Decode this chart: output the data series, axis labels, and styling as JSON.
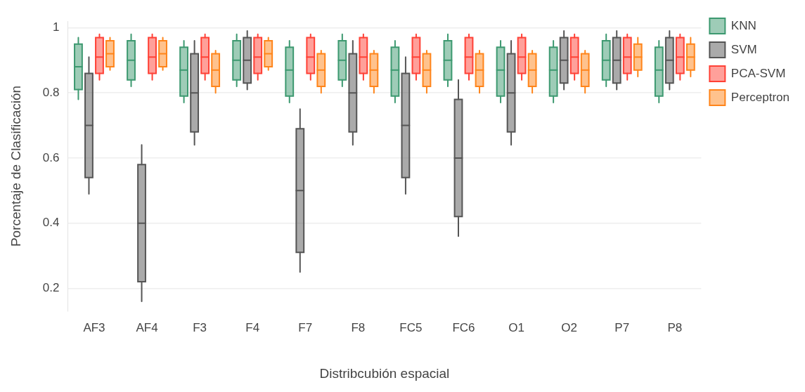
{
  "chart_data": {
    "type": "box",
    "xlabel": "Distribcubión espacial",
    "ylabel": "Porcentaje de Clasificación",
    "categories": [
      "AF3",
      "AF4",
      "F3",
      "F4",
      "F7",
      "F8",
      "FC5",
      "FC6",
      "O1",
      "O2",
      "P7",
      "P8"
    ],
    "ylim": [
      0.13,
      1.02
    ],
    "yticks": [
      0.2,
      0.4,
      0.6,
      0.8,
      1
    ],
    "grid": "y",
    "legend": "top right",
    "series": [
      {
        "name": "KNN",
        "color": "#3d9970",
        "boxes": [
          {
            "low": 0.78,
            "q1": 0.81,
            "median": 0.88,
            "q3": 0.95,
            "high": 0.97
          },
          {
            "low": 0.82,
            "q1": 0.84,
            "median": 0.9,
            "q3": 0.96,
            "high": 0.98
          },
          {
            "low": 0.77,
            "q1": 0.79,
            "median": 0.87,
            "q3": 0.94,
            "high": 0.96
          },
          {
            "low": 0.82,
            "q1": 0.84,
            "median": 0.9,
            "q3": 0.96,
            "high": 0.98
          },
          {
            "low": 0.77,
            "q1": 0.79,
            "median": 0.87,
            "q3": 0.94,
            "high": 0.96
          },
          {
            "low": 0.82,
            "q1": 0.84,
            "median": 0.9,
            "q3": 0.96,
            "high": 0.98
          },
          {
            "low": 0.77,
            "q1": 0.79,
            "median": 0.87,
            "q3": 0.94,
            "high": 0.96
          },
          {
            "low": 0.82,
            "q1": 0.84,
            "median": 0.9,
            "q3": 0.96,
            "high": 0.98
          },
          {
            "low": 0.77,
            "q1": 0.79,
            "median": 0.87,
            "q3": 0.94,
            "high": 0.96
          },
          {
            "low": 0.77,
            "q1": 0.79,
            "median": 0.87,
            "q3": 0.94,
            "high": 0.96
          },
          {
            "low": 0.82,
            "q1": 0.84,
            "median": 0.9,
            "q3": 0.96,
            "high": 0.98
          },
          {
            "low": 0.77,
            "q1": 0.79,
            "median": 0.87,
            "q3": 0.94,
            "high": 0.96
          }
        ]
      },
      {
        "name": "SVM",
        "color": "#555555",
        "boxes": [
          {
            "low": 0.49,
            "q1": 0.54,
            "median": 0.7,
            "q3": 0.86,
            "high": 0.91
          },
          {
            "low": 0.16,
            "q1": 0.22,
            "median": 0.4,
            "q3": 0.58,
            "high": 0.64
          },
          {
            "low": 0.64,
            "q1": 0.68,
            "median": 0.8,
            "q3": 0.92,
            "high": 0.96
          },
          {
            "low": 0.81,
            "q1": 0.83,
            "median": 0.9,
            "q3": 0.97,
            "high": 0.99
          },
          {
            "low": 0.25,
            "q1": 0.31,
            "median": 0.5,
            "q3": 0.69,
            "high": 0.75
          },
          {
            "low": 0.64,
            "q1": 0.68,
            "median": 0.8,
            "q3": 0.92,
            "high": 0.96
          },
          {
            "low": 0.49,
            "q1": 0.54,
            "median": 0.7,
            "q3": 0.86,
            "high": 0.91
          },
          {
            "low": 0.36,
            "q1": 0.42,
            "median": 0.6,
            "q3": 0.78,
            "high": 0.84
          },
          {
            "low": 0.64,
            "q1": 0.68,
            "median": 0.8,
            "q3": 0.92,
            "high": 0.96
          },
          {
            "low": 0.81,
            "q1": 0.83,
            "median": 0.9,
            "q3": 0.97,
            "high": 0.99
          },
          {
            "low": 0.81,
            "q1": 0.83,
            "median": 0.9,
            "q3": 0.97,
            "high": 0.99
          },
          {
            "low": 0.81,
            "q1": 0.83,
            "median": 0.9,
            "q3": 0.97,
            "high": 0.99
          }
        ]
      },
      {
        "name": "PCA-SVM",
        "color": "#ff4136",
        "boxes": [
          {
            "low": 0.84,
            "q1": 0.86,
            "median": 0.91,
            "q3": 0.97,
            "high": 0.98
          },
          {
            "low": 0.84,
            "q1": 0.86,
            "median": 0.91,
            "q3": 0.97,
            "high": 0.98
          },
          {
            "low": 0.84,
            "q1": 0.86,
            "median": 0.91,
            "q3": 0.97,
            "high": 0.98
          },
          {
            "low": 0.84,
            "q1": 0.86,
            "median": 0.91,
            "q3": 0.97,
            "high": 0.98
          },
          {
            "low": 0.84,
            "q1": 0.86,
            "median": 0.91,
            "q3": 0.97,
            "high": 0.98
          },
          {
            "low": 0.84,
            "q1": 0.86,
            "median": 0.91,
            "q3": 0.97,
            "high": 0.98
          },
          {
            "low": 0.84,
            "q1": 0.86,
            "median": 0.91,
            "q3": 0.97,
            "high": 0.98
          },
          {
            "low": 0.84,
            "q1": 0.86,
            "median": 0.91,
            "q3": 0.97,
            "high": 0.98
          },
          {
            "low": 0.84,
            "q1": 0.86,
            "median": 0.91,
            "q3": 0.97,
            "high": 0.98
          },
          {
            "low": 0.84,
            "q1": 0.86,
            "median": 0.91,
            "q3": 0.97,
            "high": 0.98
          },
          {
            "low": 0.84,
            "q1": 0.86,
            "median": 0.91,
            "q3": 0.97,
            "high": 0.98
          },
          {
            "low": 0.84,
            "q1": 0.86,
            "median": 0.91,
            "q3": 0.97,
            "high": 0.98
          }
        ]
      },
      {
        "name": "Perceptron",
        "color": "#ff851b",
        "boxes": [
          {
            "low": 0.87,
            "q1": 0.88,
            "median": 0.92,
            "q3": 0.96,
            "high": 0.97
          },
          {
            "low": 0.87,
            "q1": 0.88,
            "median": 0.92,
            "q3": 0.96,
            "high": 0.97
          },
          {
            "low": 0.8,
            "q1": 0.82,
            "median": 0.87,
            "q3": 0.92,
            "high": 0.93
          },
          {
            "low": 0.87,
            "q1": 0.88,
            "median": 0.92,
            "q3": 0.96,
            "high": 0.97
          },
          {
            "low": 0.8,
            "q1": 0.82,
            "median": 0.87,
            "q3": 0.92,
            "high": 0.93
          },
          {
            "low": 0.8,
            "q1": 0.82,
            "median": 0.87,
            "q3": 0.92,
            "high": 0.93
          },
          {
            "low": 0.8,
            "q1": 0.82,
            "median": 0.87,
            "q3": 0.92,
            "high": 0.93
          },
          {
            "low": 0.8,
            "q1": 0.82,
            "median": 0.87,
            "q3": 0.92,
            "high": 0.93
          },
          {
            "low": 0.8,
            "q1": 0.82,
            "median": 0.87,
            "q3": 0.92,
            "high": 0.93
          },
          {
            "low": 0.8,
            "q1": 0.82,
            "median": 0.87,
            "q3": 0.92,
            "high": 0.93
          },
          {
            "low": 0.85,
            "q1": 0.87,
            "median": 0.91,
            "q3": 0.95,
            "high": 0.97
          },
          {
            "low": 0.85,
            "q1": 0.87,
            "median": 0.91,
            "q3": 0.95,
            "high": 0.97
          }
        ]
      }
    ]
  }
}
